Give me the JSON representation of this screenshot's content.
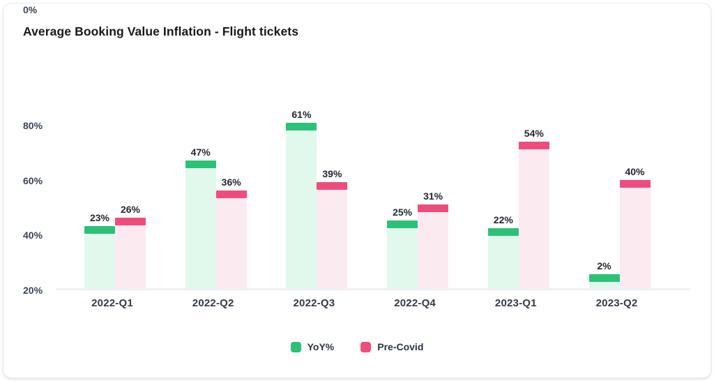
{
  "chart_data": {
    "type": "bar",
    "title": "Average Booking Value Inflation - Flight tickets",
    "categories": [
      "2022-Q1",
      "2022-Q2",
      "2022-Q3",
      "2022-Q4",
      "2023-Q1",
      "2023-Q2"
    ],
    "series": [
      {
        "name": "YoY%",
        "color": "#2bc177",
        "light_color": "#e1f8ec",
        "values": [
          23,
          47,
          61,
          25,
          22,
          2
        ],
        "labels": [
          "23%",
          "47%",
          "61%",
          "25%",
          "22%",
          "2%"
        ]
      },
      {
        "name": "Pre-Covid",
        "color": "#ee4c7c",
        "light_color": "#fceaf1",
        "values": [
          26,
          36,
          39,
          31,
          54,
          40
        ],
        "labels": [
          "26%",
          "36%",
          "39%",
          "31%",
          "54%",
          "40%"
        ]
      }
    ],
    "ylim": [
      0,
      80
    ],
    "ytick_labels": [
      "80%",
      "60%",
      "40%",
      "20%",
      "0%"
    ],
    "grid": false,
    "legend_position": "bottom"
  }
}
